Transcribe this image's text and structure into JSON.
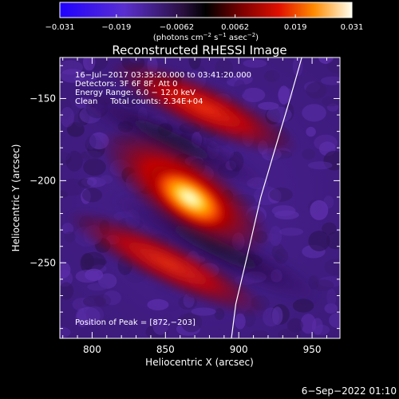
{
  "chart_data": {
    "type": "heatmap",
    "title": "Reconstructed RHESSI Image",
    "xlabel": "Heliocentric X (arcsec)",
    "ylabel": "Heliocentric Y (arcsec)",
    "xlim": [
      778,
      969
    ],
    "ylim": [
      -296,
      -125
    ],
    "x_ticks": [
      800,
      850,
      900,
      950
    ],
    "x_tick_labels": [
      "800",
      "850",
      "900",
      "950"
    ],
    "y_ticks": [
      -150,
      -200,
      -250
    ],
    "y_tick_labels": [
      "−150",
      "−200",
      "−250"
    ],
    "colorbar": {
      "range": [
        -0.031,
        0.031
      ],
      "ticks": [
        -0.031,
        -0.019,
        -0.0062,
        0.0062,
        0.019,
        0.031
      ],
      "tick_labels": [
        "−0.031",
        "−0.019",
        "−0.0062",
        "0.0062",
        "0.019",
        "0.031"
      ],
      "unit_label": {
        "base": "(photons cm",
        "exp1": "−2",
        "mid1": " s",
        "exp2": "−1",
        "mid2": " asec",
        "exp3": "−2",
        "end": ")"
      }
    },
    "annotations": [
      "16−Jul−2017 03:35:20.000 to 03:41:20.000",
      "Detectors: 3F 6F 8F, Att 0",
      "Energy Range: 6.0 − 12.0 keV",
      "Clean     Total counts: 2.34E+04"
    ],
    "peak": {
      "label": "Position of Peak = [872,−203]",
      "x": 872,
      "y": -203
    },
    "limb_curve": {
      "points": [
        [
          943,
          -125
        ],
        [
          935,
          -150
        ],
        [
          925,
          -180
        ],
        [
          915,
          -210
        ],
        [
          906,
          -245
        ],
        [
          898,
          -275
        ],
        [
          895,
          -296
        ]
      ]
    },
    "colors": {
      "background": "#000000",
      "foreground": "#ffffff",
      "colormap_low": "#1f00ff",
      "colormap_mid_low": "#5b2eaa",
      "colormap_mid": "#000000",
      "colormap_mid_high": "#d00000",
      "colormap_high": "#fffef0"
    }
  },
  "footer": {
    "timestamp": "6−Sep−2022 01:10"
  }
}
